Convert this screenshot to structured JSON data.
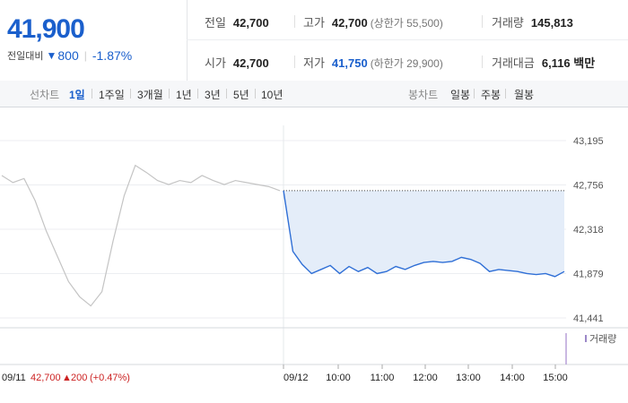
{
  "quote": {
    "price": "41,900",
    "change_label": "전일대비",
    "change_icon": "down-triangle-icon",
    "change": "800",
    "change_pct": "-1.87%"
  },
  "stats": {
    "prev_close": {
      "label": "전일",
      "value": "42,700"
    },
    "high": {
      "label": "고가",
      "value": "42,700",
      "sub": "(상한가 55,500)"
    },
    "volume": {
      "label": "거래량",
      "value": "145,813"
    },
    "open": {
      "label": "시가",
      "value": "42,700"
    },
    "low": {
      "label": "저가",
      "value": "41,750",
      "sub": "(하한가 29,900)"
    },
    "amount": {
      "label": "거래대금",
      "value": "6,116 백만"
    }
  },
  "tabs": {
    "line_label": "선차트",
    "line_items": [
      "1일",
      "1주일",
      "3개월",
      "1년",
      "3년",
      "5년",
      "10년"
    ],
    "line_selected": "1일",
    "candle_label": "봉차트",
    "candle_items": [
      "일봉",
      "주봉",
      "월봉"
    ]
  },
  "chart_data": {
    "type": "line",
    "yticks": [
      "43,195",
      "42,756",
      "42,318",
      "41,879",
      "41,441"
    ],
    "ylim": [
      41441,
      43195
    ],
    "reference_price": 42700,
    "xticks": [
      "09/12",
      "10:00",
      "11:00",
      "12:00",
      "13:00",
      "14:00",
      "15:00"
    ],
    "previous_day": {
      "date": "09/11",
      "close": "42,700",
      "change_icon": "up-triangle-icon",
      "change": "200",
      "change_pct": "(+0.47%)",
      "values": [
        42850,
        42780,
        42820,
        42600,
        42300,
        42050,
        41800,
        41650,
        41560,
        41700,
        42200,
        42650,
        42950,
        42880,
        42800,
        42760,
        42800,
        42780,
        42850,
        42800,
        42760,
        42800,
        42780,
        42760,
        42740,
        42700
      ]
    },
    "today": {
      "values": [
        42700,
        42100,
        41970,
        41880,
        41920,
        41960,
        41880,
        41950,
        41900,
        41940,
        41880,
        41900,
        41950,
        41920,
        41960,
        41990,
        42000,
        41990,
        42000,
        42040,
        42020,
        41980,
        41900,
        41920,
        41910,
        41900,
        41880,
        41870,
        41880,
        41850,
        41900
      ]
    },
    "volume_label": "거래량"
  }
}
